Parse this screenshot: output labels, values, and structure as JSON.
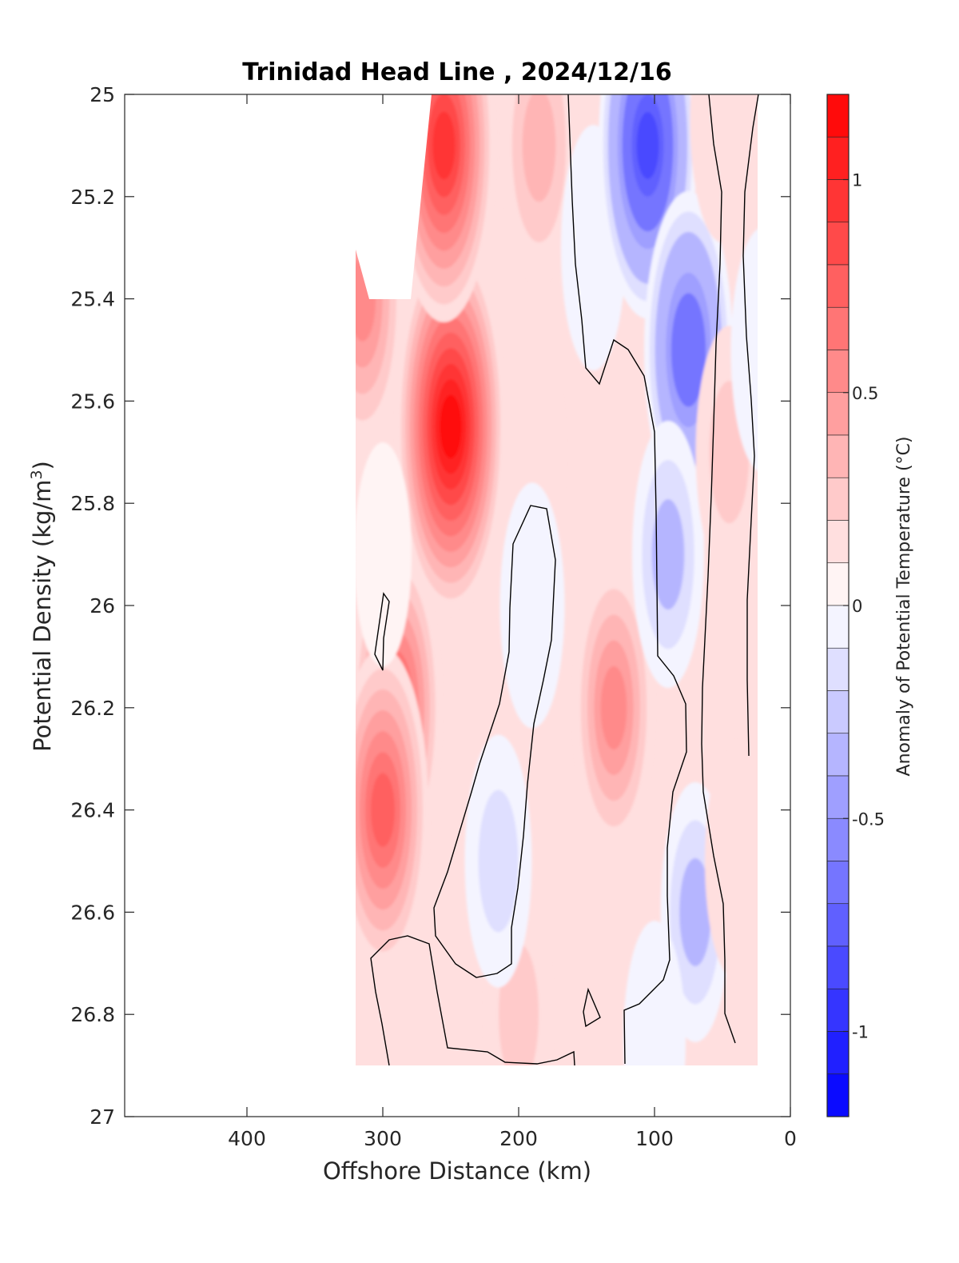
{
  "chart_data": {
    "type": "heatmap",
    "subtype": "filled-contour",
    "title": "Trinidad Head Line , 2024/12/16",
    "xlabel": "Offshore Distance (km)",
    "ylabel_main": "Potential Density (kg/m",
    "ylabel_sup": "3",
    "ylabel_end": ")",
    "xlim": [
      490,
      0
    ],
    "x_reversed": true,
    "ylim": [
      25,
      27
    ],
    "y_reversed": true,
    "x_ticks": [
      400,
      300,
      200,
      100,
      0
    ],
    "y_ticks": [
      25,
      25.2,
      25.4,
      25.6,
      25.8,
      26,
      26.2,
      26.4,
      26.6,
      26.8,
      27
    ],
    "colorbar": {
      "label": "Anomaly of Potential Temperature (°C)",
      "min": -1.2,
      "max": 1.2,
      "step": 0.1,
      "ticks": [
        1,
        0.5,
        0,
        -0.5,
        -1
      ],
      "tick_labels": [
        "1",
        "0.5",
        "0",
        "-0.5",
        "-1"
      ],
      "color_max": "#ff0000",
      "color_mid": "#ffffff",
      "color_min": "#0000ff"
    },
    "data_x_range": [
      320,
      20
    ],
    "data_y_range": [
      25,
      26.9
    ],
    "anomaly_features": [
      {
        "x": 250,
        "y": 25.65,
        "value": 1.05
      },
      {
        "x": 255,
        "y": 25.1,
        "value": 0.9
      },
      {
        "x": 290,
        "y": 26.2,
        "value": 0.65
      },
      {
        "x": 300,
        "y": 26.4,
        "value": 0.7
      },
      {
        "x": 315,
        "y": 25.4,
        "value": 0.5
      },
      {
        "x": 300,
        "y": 25.9,
        "value": 0.0
      },
      {
        "x": 185,
        "y": 25.1,
        "value": 0.35
      },
      {
        "x": 190,
        "y": 25.7,
        "value": 0.15
      },
      {
        "x": 190,
        "y": 26.0,
        "value": -0.15
      },
      {
        "x": 130,
        "y": 26.2,
        "value": 0.45
      },
      {
        "x": 200,
        "y": 26.8,
        "value": 0.2
      },
      {
        "x": 215,
        "y": 26.5,
        "value": -0.2
      },
      {
        "x": 145,
        "y": 25.3,
        "value": -0.15
      },
      {
        "x": 105,
        "y": 25.1,
        "value": -0.85
      },
      {
        "x": 75,
        "y": 25.5,
        "value": -0.65
      },
      {
        "x": 90,
        "y": 25.9,
        "value": -0.3
      },
      {
        "x": 70,
        "y": 26.6,
        "value": -0.25
      },
      {
        "x": 100,
        "y": 26.85,
        "value": -0.1
      },
      {
        "x": 45,
        "y": 25.7,
        "value": 0.2
      },
      {
        "x": 50,
        "y": 25.05,
        "value": 0.15
      },
      {
        "x": 20,
        "y": 25.5,
        "value": -0.15
      },
      {
        "x": 40,
        "y": 26.5,
        "value": 0.1
      }
    ]
  }
}
